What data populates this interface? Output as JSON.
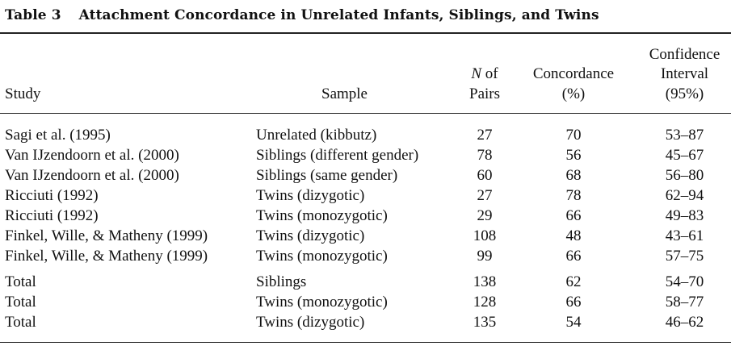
{
  "table": {
    "number": "Table 3",
    "title": "Attachment Concordance in Unrelated Infants, Siblings, and Twins",
    "headers": {
      "study": "Study",
      "sample": "Sample",
      "n_italic": "N",
      "n_line1_rest": " of",
      "n_line2": "Pairs",
      "conc_line1": "Concordance",
      "conc_line2": "(%)",
      "ci_line1": "Confidence",
      "ci_line2": "Interval",
      "ci_line3": "(95%)"
    },
    "rows": [
      {
        "study": "Sagi et al. (1995)",
        "sample": "Unrelated (kibbutz)",
        "n": "27",
        "concordance": "70",
        "ci": "53–87"
      },
      {
        "study": "Van IJzendoorn et al. (2000)",
        "sample": "Siblings (different gender)",
        "n": "78",
        "concordance": "56",
        "ci": "45–67"
      },
      {
        "study": "Van IJzendoorn et al. (2000)",
        "sample": "Siblings (same gender)",
        "n": "60",
        "concordance": "68",
        "ci": "56–80"
      },
      {
        "study": "Ricciuti (1992)",
        "sample": "Twins (dizygotic)",
        "n": "27",
        "concordance": "78",
        "ci": "62–94"
      },
      {
        "study": "Ricciuti (1992)",
        "sample": "Twins (monozygotic)",
        "n": "29",
        "concordance": "66",
        "ci": "49–83"
      },
      {
        "study": "Finkel, Wille, & Matheny (1999)",
        "sample": "Twins (dizygotic)",
        "n": "108",
        "concordance": "48",
        "ci": "43–61"
      },
      {
        "study": "Finkel, Wille, & Matheny (1999)",
        "sample": "Twins (monozygotic)",
        "n": "99",
        "concordance": "66",
        "ci": "57–75"
      },
      {
        "study": "Total",
        "sample": "Siblings",
        "n": "138",
        "concordance": "62",
        "ci": "54–70"
      },
      {
        "study": "Total",
        "sample": "Twins (monozygotic)",
        "n": "128",
        "concordance": "66",
        "ci": "58–77"
      },
      {
        "study": "Total",
        "sample": "Twins (dizygotic)",
        "n": "135",
        "concordance": "54",
        "ci": "46–62"
      }
    ]
  }
}
